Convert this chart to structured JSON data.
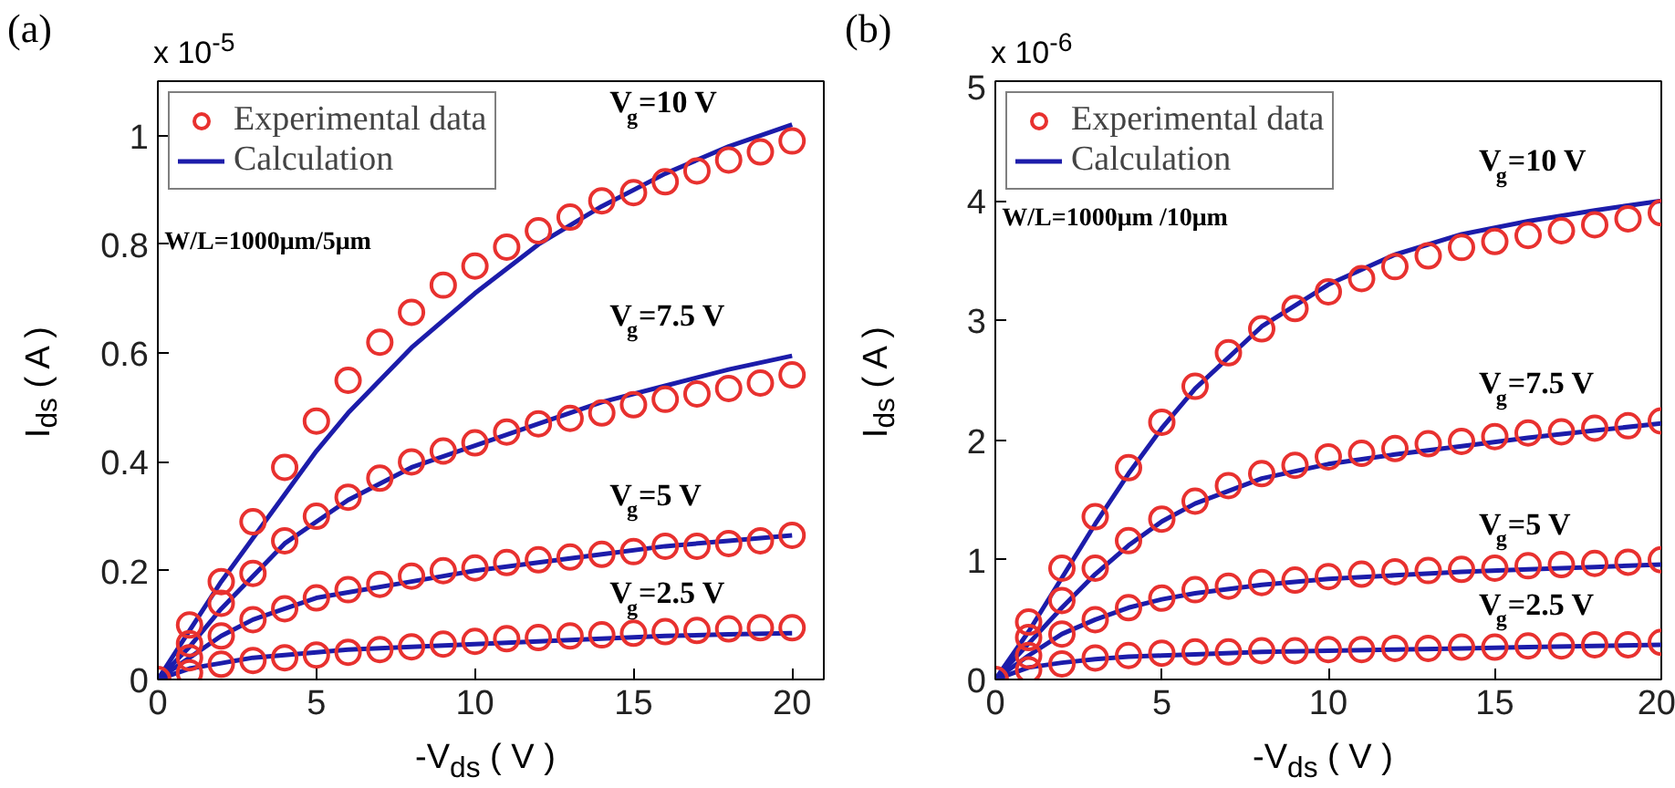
{
  "chart_data": [
    {
      "type": "scatter",
      "title": "(a)",
      "xlabel": "-V$_{ds}$ ( V )",
      "ylabel": "I$_{ds}$ ( A )",
      "x": [
        0,
        1,
        2,
        3,
        4,
        5,
        6,
        7,
        8,
        9,
        10,
        11,
        12,
        13,
        14,
        15,
        16,
        17,
        18,
        19,
        20
      ],
      "xlim": [
        0,
        21
      ],
      "ylim": [
        0,
        1.1
      ],
      "xticks": [
        0,
        5,
        10,
        15,
        20
      ],
      "yticks": [
        0,
        0.2,
        0.4,
        0.6,
        0.8,
        1
      ],
      "legend": "top left",
      "grid": false,
      "series": [
        {
          "name": "Experimental data",
          "marker": "circle",
          "color": "#e8312f",
          "values": [
            0,
            0.1,
            0.18,
            0.29,
            0.39,
            0.475,
            0.55,
            0.62,
            0.675,
            0.725,
            0.76,
            0.795,
            0.825,
            0.85,
            0.88,
            0.895,
            0.915,
            0.935,
            0.955,
            0.97,
            0.99
          ]
        },
        {
          "marker": "circle",
          "color": "#e8312f",
          "values": [
            null,
            0.066,
            0.14,
            0.195,
            0.255,
            0.3,
            0.335,
            0.37,
            0.4,
            0.42,
            0.435,
            0.455,
            0.47,
            0.48,
            0.49,
            0.505,
            0.515,
            0.525,
            0.535,
            0.545,
            0.56
          ]
        },
        {
          "marker": "circle",
          "color": "#e8312f",
          "values": [
            null,
            0.04,
            0.08,
            0.11,
            0.13,
            0.15,
            0.165,
            0.175,
            0.19,
            0.2,
            0.205,
            0.215,
            0.22,
            0.225,
            0.23,
            0.235,
            0.245,
            0.245,
            0.25,
            0.255,
            0.265
          ]
        },
        {
          "marker": "circle",
          "color": "#e8312f",
          "values": [
            null,
            0.012,
            0.028,
            0.035,
            0.04,
            0.045,
            0.05,
            0.055,
            0.06,
            0.065,
            0.07,
            0.075,
            0.077,
            0.08,
            0.082,
            0.085,
            0.088,
            0.09,
            0.093,
            0.095,
            0.095
          ]
        },
        {
          "name": "Calculation",
          "type": "line",
          "color": "#1c1caa",
          "x": [
            0,
            1,
            2,
            3,
            4,
            5,
            6,
            8,
            10,
            12,
            14,
            16,
            18,
            20
          ],
          "values": [
            0,
            0.09,
            0.18,
            0.26,
            0.34,
            0.42,
            0.49,
            0.61,
            0.71,
            0.8,
            0.87,
            0.93,
            0.98,
            1.02
          ]
        },
        {
          "type": "line",
          "color": "#1c1caa",
          "x": [
            0,
            1,
            2,
            3,
            4,
            5,
            6,
            8,
            10,
            12,
            14,
            16,
            18,
            20
          ],
          "values": [
            0,
            0.06,
            0.13,
            0.19,
            0.25,
            0.29,
            0.33,
            0.39,
            0.43,
            0.47,
            0.51,
            0.54,
            0.57,
            0.595
          ]
        },
        {
          "type": "line",
          "color": "#1c1caa",
          "x": [
            0,
            1,
            2,
            3,
            4,
            5,
            6,
            8,
            10,
            12,
            14,
            16,
            18,
            20
          ],
          "values": [
            0,
            0.04,
            0.08,
            0.11,
            0.13,
            0.15,
            0.16,
            0.18,
            0.2,
            0.215,
            0.23,
            0.245,
            0.255,
            0.265
          ]
        },
        {
          "type": "line",
          "color": "#1c1caa",
          "x": [
            0,
            1,
            2,
            3,
            4,
            5,
            6,
            8,
            10,
            12,
            14,
            16,
            18,
            20
          ],
          "values": [
            0,
            0.02,
            0.03,
            0.04,
            0.045,
            0.05,
            0.055,
            0.06,
            0.065,
            0.07,
            0.075,
            0.08,
            0.083,
            0.085
          ]
        }
      ],
      "annotations": [
        "x 10$^{-5}$",
        "W/L=1000μm/5μm",
        "V$_{g}$=10 V",
        "V$_{g}$=7.5 V",
        "V$_{g}$=5 V",
        "V$_{g}$=2.5 V"
      ]
    },
    {
      "type": "scatter",
      "title": "(b)",
      "xlabel": "-V$_{ds}$ ( V )",
      "ylabel": "I$_{ds}$ ( A )",
      "x": [
        0,
        1,
        2,
        3,
        4,
        5,
        6,
        7,
        8,
        9,
        10,
        11,
        12,
        13,
        14,
        15,
        16,
        17,
        18,
        19,
        20
      ],
      "xlim": [
        0,
        20
      ],
      "ylim": [
        0,
        5
      ],
      "xticks": [
        0,
        5,
        10,
        15,
        20
      ],
      "yticks": [
        0,
        1,
        2,
        3,
        4,
        5
      ],
      "legend": "top left",
      "grid": false,
      "series": [
        {
          "name": "Experimental data",
          "marker": "circle",
          "color": "#e8312f",
          "values": [
            0,
            0.48,
            0.93,
            1.36,
            1.77,
            2.15,
            2.45,
            2.73,
            2.93,
            3.1,
            3.24,
            3.35,
            3.45,
            3.54,
            3.61,
            3.66,
            3.71,
            3.75,
            3.8,
            3.85,
            3.9
          ]
        },
        {
          "marker": "circle",
          "color": "#e8312f",
          "values": [
            null,
            0.35,
            0.66,
            0.93,
            1.16,
            1.34,
            1.49,
            1.62,
            1.72,
            1.79,
            1.86,
            1.89,
            1.93,
            1.97,
            1.99,
            2.03,
            2.06,
            2.07,
            2.1,
            2.12,
            2.16
          ]
        },
        {
          "marker": "circle",
          "color": "#e8312f",
          "values": [
            null,
            0.2,
            0.38,
            0.5,
            0.6,
            0.68,
            0.75,
            0.78,
            0.81,
            0.83,
            0.86,
            0.88,
            0.9,
            0.91,
            0.92,
            0.93,
            0.95,
            0.96,
            0.97,
            0.98,
            1.0
          ]
        },
        {
          "marker": "circle",
          "color": "#e8312f",
          "values": [
            null,
            0.08,
            0.13,
            0.18,
            0.2,
            0.22,
            0.23,
            0.23,
            0.24,
            0.24,
            0.25,
            0.25,
            0.26,
            0.26,
            0.27,
            0.27,
            0.28,
            0.28,
            0.29,
            0.29,
            0.31
          ]
        },
        {
          "name": "Calculation",
          "type": "line",
          "color": "#1c1caa",
          "x": [
            0,
            1,
            2,
            3,
            4,
            5,
            6,
            8,
            10,
            12,
            14,
            16,
            18,
            20
          ],
          "values": [
            0,
            0.4,
            0.85,
            1.3,
            1.72,
            2.1,
            2.43,
            2.95,
            3.3,
            3.55,
            3.72,
            3.83,
            3.92,
            4.0
          ]
        },
        {
          "type": "line",
          "color": "#1c1caa",
          "x": [
            0,
            1,
            2,
            3,
            4,
            5,
            6,
            8,
            10,
            12,
            14,
            16,
            18,
            20
          ],
          "values": [
            0,
            0.3,
            0.6,
            0.88,
            1.12,
            1.32,
            1.47,
            1.68,
            1.8,
            1.88,
            1.95,
            2.02,
            2.08,
            2.14
          ]
        },
        {
          "type": "line",
          "color": "#1c1caa",
          "x": [
            0,
            1,
            2,
            3,
            4,
            5,
            6,
            8,
            10,
            12,
            14,
            16,
            18,
            20
          ],
          "values": [
            0,
            0.2,
            0.38,
            0.5,
            0.6,
            0.67,
            0.72,
            0.79,
            0.84,
            0.87,
            0.9,
            0.92,
            0.94,
            0.96
          ]
        },
        {
          "type": "line",
          "color": "#1c1caa",
          "x": [
            0,
            1,
            2,
            3,
            4,
            5,
            6,
            8,
            10,
            12,
            14,
            16,
            18,
            20
          ],
          "values": [
            0,
            0.1,
            0.14,
            0.17,
            0.19,
            0.2,
            0.21,
            0.23,
            0.24,
            0.25,
            0.26,
            0.27,
            0.28,
            0.29
          ]
        }
      ],
      "annotations": [
        "x 10$^{-6}$",
        "W/L=1000μm /10μm",
        "V$_{g}$=10 V",
        "V$_{g}$=7.5 V",
        "V$_{g}$=5 V",
        "V$_{g}$=2.5 V"
      ]
    }
  ]
}
